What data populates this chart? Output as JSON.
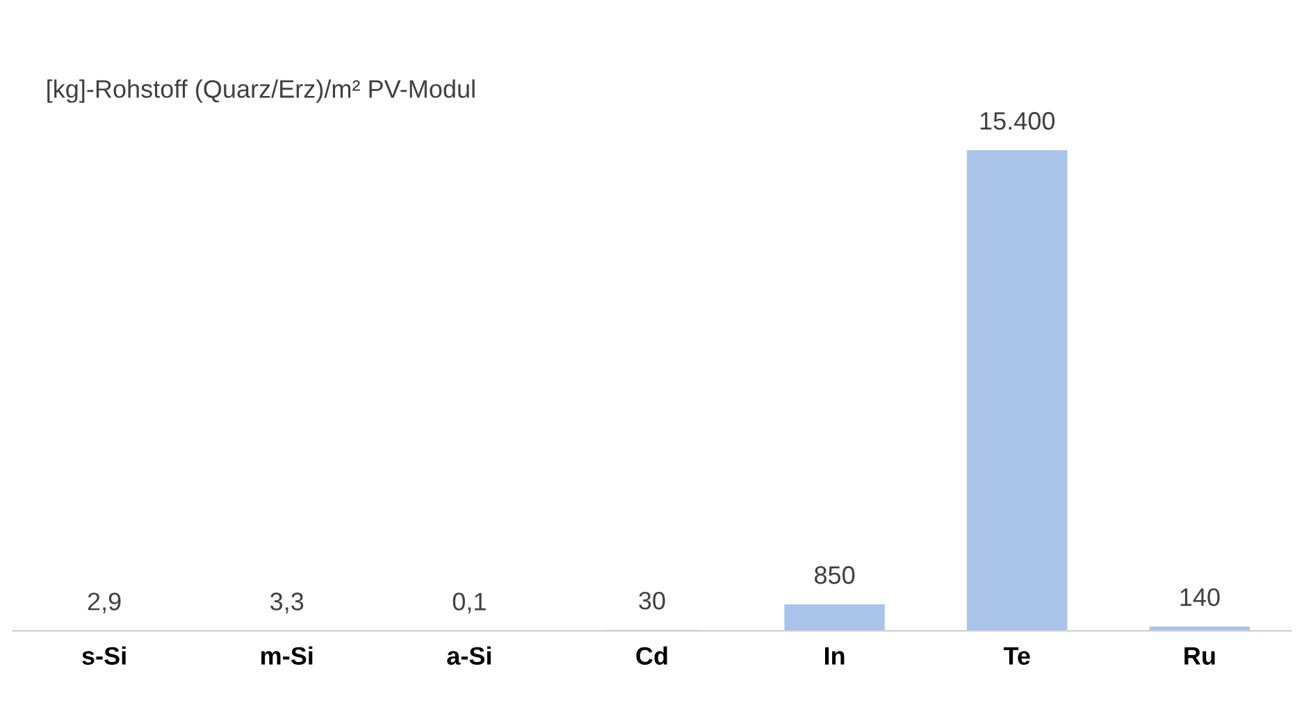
{
  "chart_data": {
    "type": "bar",
    "title": "[kg]-Rohstoff (Quarz/Erz)/m² PV-Modul",
    "categories": [
      "s-Si",
      "m-Si",
      "a-Si",
      "Cd",
      "In",
      "Te",
      "Ru"
    ],
    "values": [
      2.9,
      3.3,
      0.1,
      30,
      850,
      15400,
      140
    ],
    "value_labels": [
      "2,9",
      "3,3",
      "0,1",
      "30",
      "850",
      "15.400",
      "140"
    ],
    "color": "#a9c4e8"
  }
}
